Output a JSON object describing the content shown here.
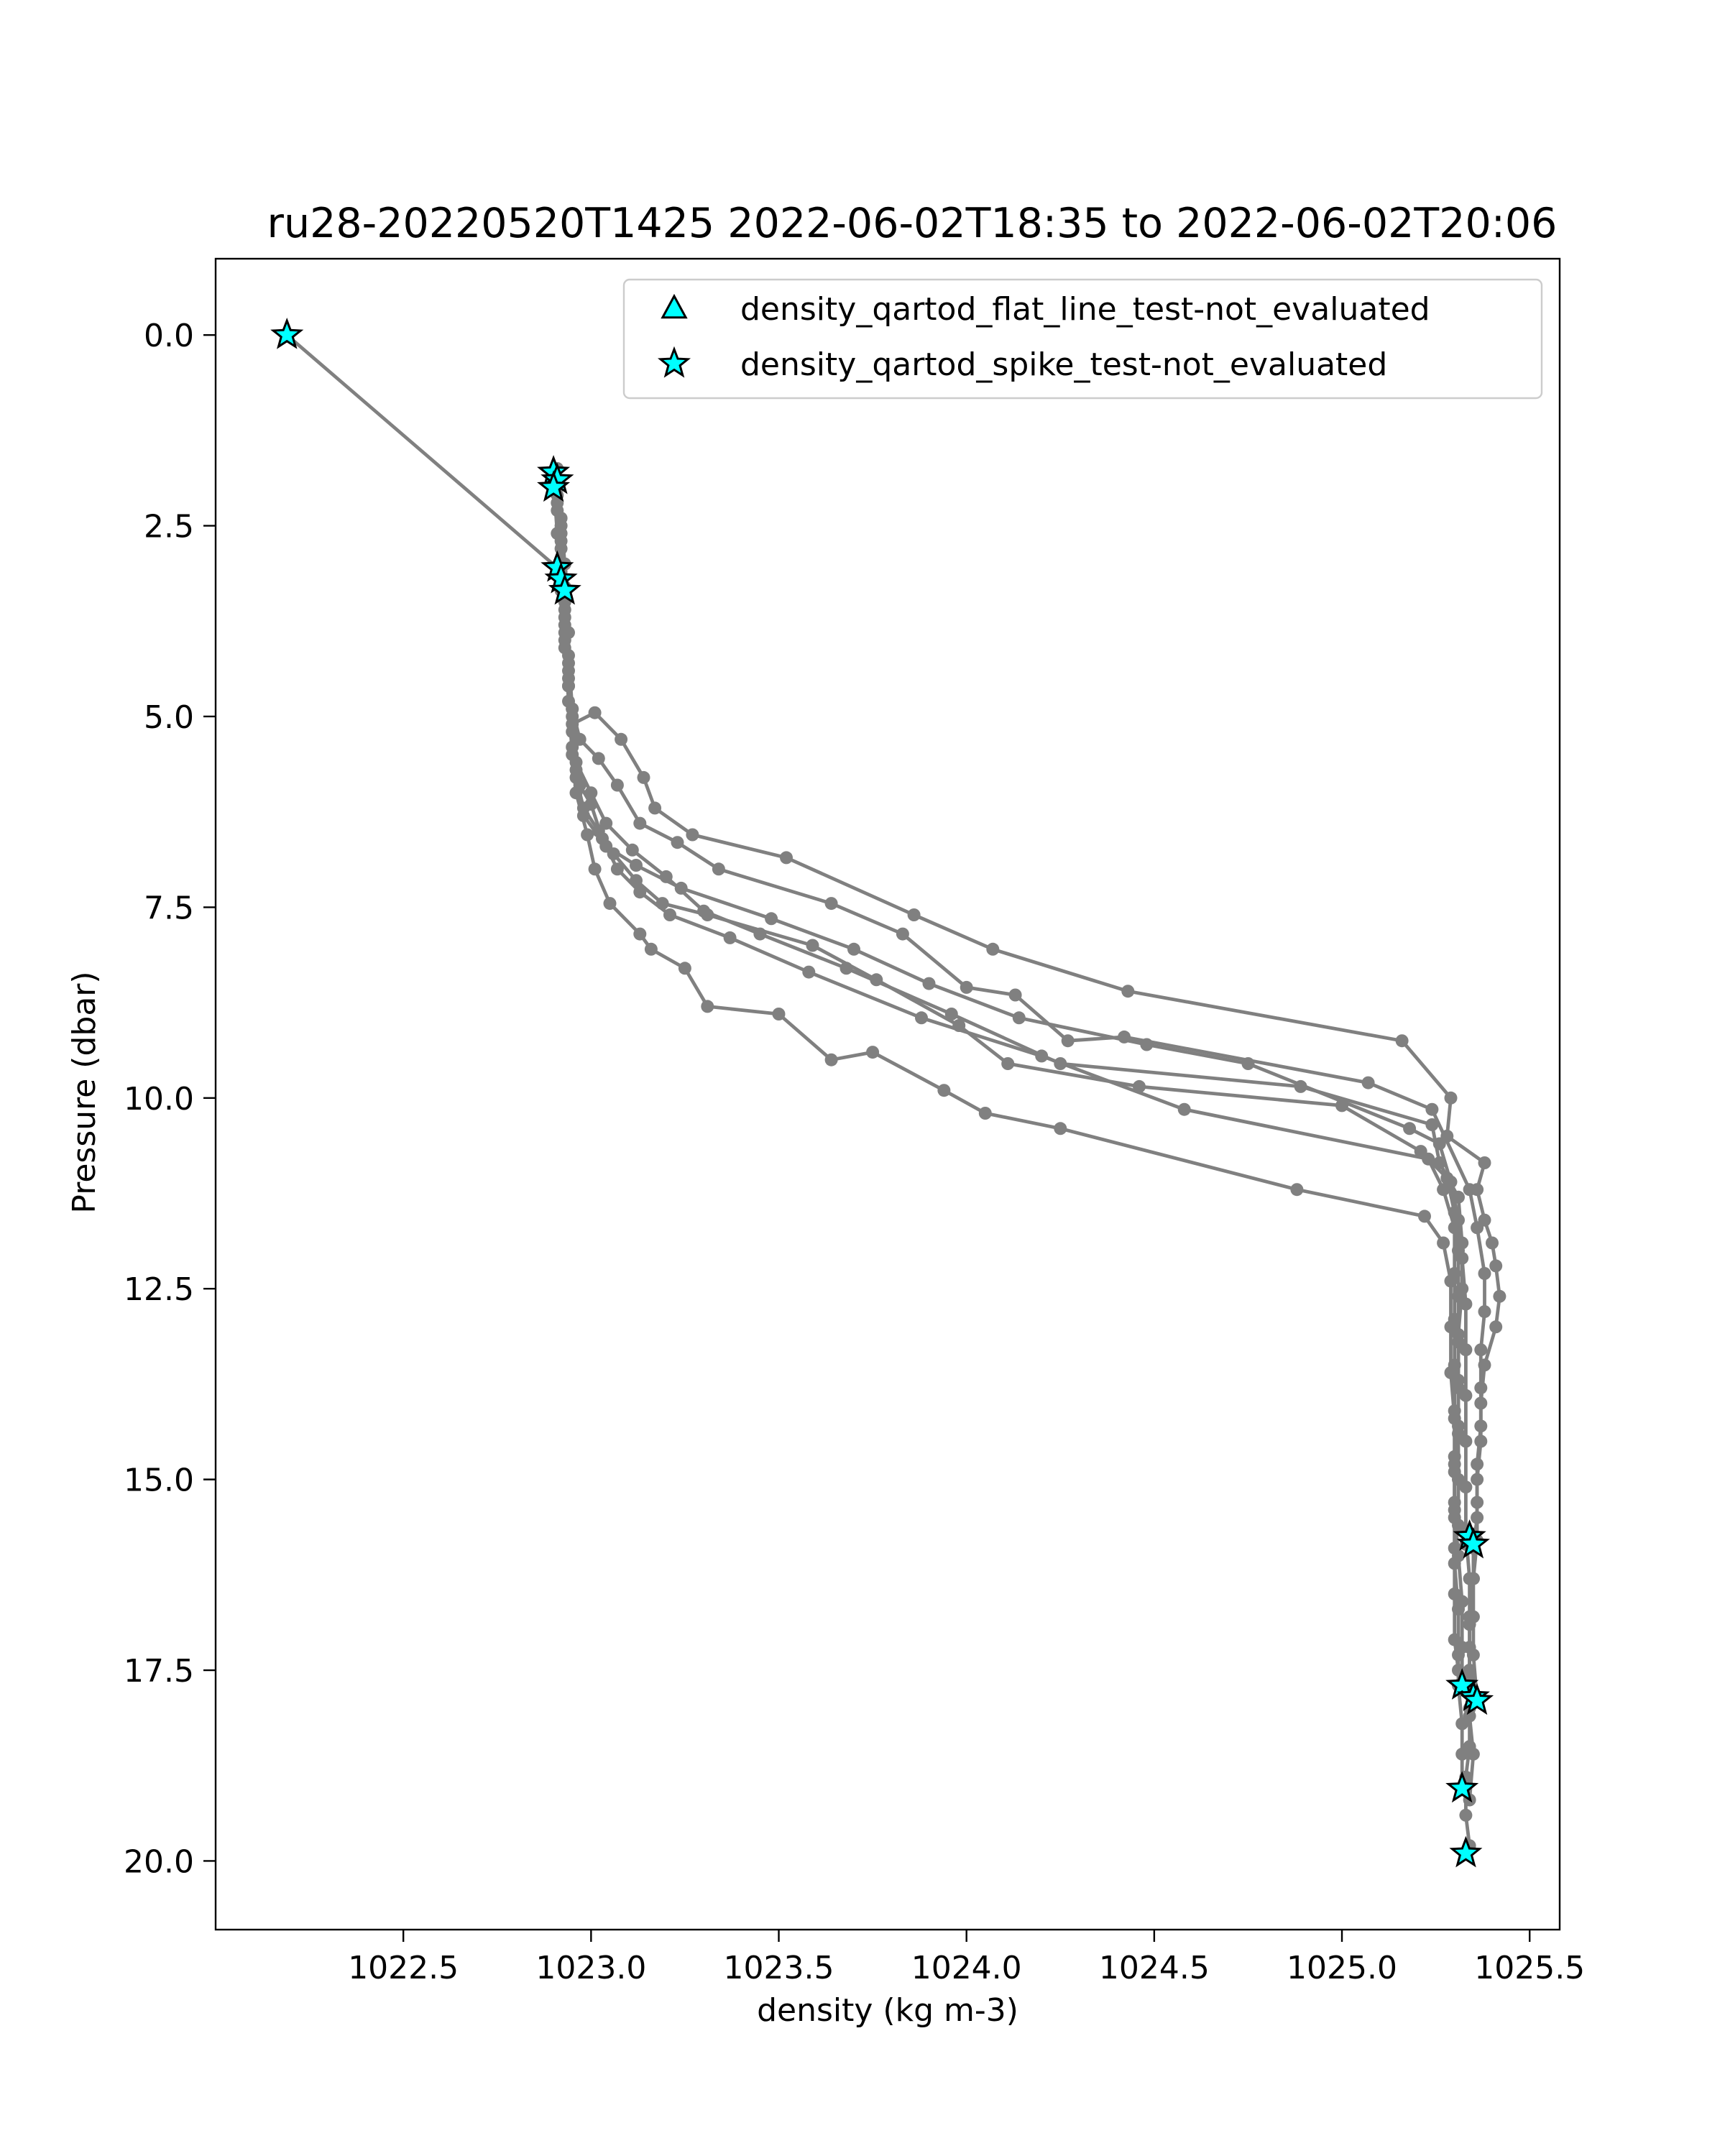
{
  "chart_data": {
    "type": "scatter",
    "title": "ru28-20220520T1425 2022-06-02T18:35 to 2022-06-02T20:06",
    "xlabel": "density (kg m-3)",
    "ylabel": "Pressure (dbar)",
    "xlim": [
      1022.0,
      1025.58
    ],
    "ylim": [
      20.9,
      -1.0
    ],
    "y_inverted": true,
    "x_ticks": [
      1022.5,
      1023.0,
      1023.5,
      1024.0,
      1024.5,
      1025.0,
      1025.5
    ],
    "x_tick_labels": [
      "1022.5",
      "1023.0",
      "1023.5",
      "1024.0",
      "1024.5",
      "1025.0",
      "1025.5"
    ],
    "y_ticks": [
      0.0,
      2.5,
      5.0,
      7.5,
      10.0,
      12.5,
      15.0,
      17.5,
      20.0
    ],
    "y_tick_labels": [
      "0.0",
      "2.5",
      "5.0",
      "7.5",
      "10.0",
      "12.5",
      "15.0",
      "17.5",
      "20.0"
    ],
    "grid": false,
    "legend_position": "top-right",
    "legend": [
      {
        "label": "density_qartod_flat_line_test-not_evaluated",
        "marker": "triangle",
        "color": "#00ffff"
      },
      {
        "label": "density_qartod_spike_test-not_evaluated",
        "marker": "star",
        "color": "#00ffff"
      }
    ],
    "line_color": "#808080",
    "series": [
      {
        "values": [
          [
            1022.19,
            0.0
          ],
          [
            1022.91,
            3.05
          ],
          [
            1022.92,
            3.3
          ],
          [
            1022.93,
            3.6
          ],
          [
            1022.93,
            4.1
          ],
          [
            1022.94,
            4.6
          ],
          [
            1022.95,
            5.1
          ],
          [
            1023.01,
            4.95
          ],
          [
            1023.08,
            5.3
          ],
          [
            1023.14,
            5.8
          ],
          [
            1023.17,
            6.2
          ],
          [
            1023.27,
            6.55
          ],
          [
            1023.52,
            6.85
          ],
          [
            1023.86,
            7.6
          ],
          [
            1024.07,
            8.05
          ],
          [
            1024.43,
            8.6
          ],
          [
            1025.16,
            9.25
          ],
          [
            1025.29,
            10.0
          ],
          [
            1025.28,
            10.5
          ],
          [
            1025.38,
            10.85
          ],
          [
            1025.36,
            11.2
          ],
          [
            1025.38,
            11.6
          ],
          [
            1025.4,
            11.9
          ],
          [
            1025.41,
            12.2
          ],
          [
            1025.42,
            12.6
          ],
          [
            1025.41,
            13.0
          ],
          [
            1025.38,
            13.5
          ],
          [
            1025.37,
            14.0
          ],
          [
            1025.37,
            14.5
          ],
          [
            1025.36,
            15.0
          ],
          [
            1025.36,
            15.5
          ],
          [
            1025.35,
            15.9
          ],
          [
            1025.35,
            16.3
          ],
          [
            1025.34,
            16.8
          ],
          [
            1025.34,
            17.2
          ],
          [
            1025.34,
            17.6
          ],
          [
            1025.34,
            18.0
          ],
          [
            1025.34,
            18.5
          ],
          [
            1025.33,
            18.9
          ],
          [
            1025.33,
            19.4
          ],
          [
            1025.34,
            19.8
          ],
          [
            1025.33,
            19.9
          ]
        ]
      },
      {
        "values": [
          [
            1022.9,
            1.8
          ],
          [
            1022.91,
            2.2
          ],
          [
            1022.92,
            2.6
          ],
          [
            1022.93,
            3.0
          ],
          [
            1022.93,
            3.4
          ],
          [
            1022.94,
            3.9
          ],
          [
            1022.94,
            4.4
          ],
          [
            1022.95,
            4.9
          ],
          [
            1022.97,
            5.3
          ],
          [
            1023.02,
            5.55
          ],
          [
            1023.07,
            5.9
          ],
          [
            1023.13,
            6.4
          ],
          [
            1023.23,
            6.65
          ],
          [
            1023.34,
            7.0
          ],
          [
            1023.64,
            7.45
          ],
          [
            1023.83,
            7.85
          ],
          [
            1024.0,
            8.55
          ],
          [
            1024.13,
            8.65
          ],
          [
            1024.27,
            9.25
          ],
          [
            1024.42,
            9.2
          ],
          [
            1025.07,
            9.8
          ],
          [
            1025.24,
            10.15
          ],
          [
            1025.34,
            11.2
          ],
          [
            1025.36,
            11.7
          ],
          [
            1025.38,
            12.3
          ],
          [
            1025.38,
            12.8
          ],
          [
            1025.37,
            13.3
          ],
          [
            1025.37,
            13.8
          ],
          [
            1025.37,
            14.3
          ],
          [
            1025.36,
            14.8
          ],
          [
            1025.36,
            15.3
          ],
          [
            1025.36,
            15.8
          ],
          [
            1025.35,
            16.3
          ],
          [
            1025.35,
            16.8
          ],
          [
            1025.35,
            17.3
          ],
          [
            1025.36,
            17.9
          ]
        ]
      },
      {
        "values": [
          [
            1022.91,
            1.75
          ],
          [
            1022.92,
            2.4
          ],
          [
            1022.93,
            3.0
          ],
          [
            1022.93,
            3.7
          ],
          [
            1022.94,
            4.3
          ],
          [
            1022.95,
            5.0
          ],
          [
            1022.96,
            5.6
          ],
          [
            1023.0,
            6.0
          ],
          [
            1023.04,
            6.4
          ],
          [
            1023.11,
            6.75
          ],
          [
            1023.2,
            7.1
          ],
          [
            1023.3,
            7.55
          ],
          [
            1023.45,
            7.85
          ],
          [
            1023.68,
            8.3
          ],
          [
            1023.96,
            8.9
          ],
          [
            1024.25,
            9.55
          ],
          [
            1024.89,
            9.85
          ],
          [
            1025.24,
            10.35
          ],
          [
            1025.26,
            10.85
          ],
          [
            1025.31,
            11.3
          ],
          [
            1025.32,
            11.9
          ],
          [
            1025.32,
            12.5
          ],
          [
            1025.31,
            13.1
          ],
          [
            1025.31,
            13.7
          ],
          [
            1025.31,
            14.3
          ],
          [
            1025.3,
            14.9
          ],
          [
            1025.3,
            15.5
          ],
          [
            1025.3,
            16.1
          ],
          [
            1025.31,
            16.7
          ],
          [
            1025.31,
            17.3
          ],
          [
            1025.31,
            17.7
          ],
          [
            1025.32,
            18.2
          ],
          [
            1025.32,
            18.6
          ],
          [
            1025.32,
            19.05
          ]
        ]
      },
      {
        "values": [
          [
            1022.9,
            1.85
          ],
          [
            1022.91,
            2.3
          ],
          [
            1022.92,
            2.8
          ],
          [
            1022.93,
            3.3
          ],
          [
            1022.93,
            3.9
          ],
          [
            1022.94,
            4.5
          ],
          [
            1022.95,
            5.2
          ],
          [
            1022.96,
            5.8
          ],
          [
            1022.98,
            6.2
          ],
          [
            1023.02,
            6.5
          ],
          [
            1023.06,
            6.8
          ],
          [
            1023.12,
            7.15
          ],
          [
            1023.19,
            7.45
          ],
          [
            1023.31,
            7.6
          ],
          [
            1023.59,
            8.0
          ],
          [
            1023.76,
            8.45
          ],
          [
            1023.98,
            9.05
          ],
          [
            1024.11,
            9.55
          ],
          [
            1024.46,
            9.85
          ],
          [
            1025.0,
            10.1
          ],
          [
            1025.21,
            10.7
          ],
          [
            1025.28,
            11.05
          ],
          [
            1025.3,
            11.5
          ],
          [
            1025.31,
            12.0
          ],
          [
            1025.31,
            12.6
          ],
          [
            1025.31,
            13.2
          ],
          [
            1025.31,
            13.8
          ],
          [
            1025.31,
            14.4
          ],
          [
            1025.31,
            15.0
          ],
          [
            1025.31,
            15.6
          ],
          [
            1025.33,
            15.85
          ]
        ]
      },
      {
        "values": [
          [
            1022.91,
            2.0
          ],
          [
            1022.92,
            2.5
          ],
          [
            1022.92,
            3.1
          ],
          [
            1022.93,
            3.8
          ],
          [
            1022.94,
            4.6
          ],
          [
            1022.95,
            5.4
          ],
          [
            1022.97,
            5.9
          ],
          [
            1023.0,
            6.15
          ],
          [
            1023.03,
            6.6
          ],
          [
            1023.07,
            7.0
          ],
          [
            1023.13,
            7.3
          ],
          [
            1023.21,
            7.6
          ],
          [
            1023.37,
            7.9
          ],
          [
            1023.58,
            8.35
          ],
          [
            1023.88,
            8.95
          ],
          [
            1024.2,
            9.45
          ],
          [
            1024.58,
            10.15
          ],
          [
            1025.23,
            10.8
          ],
          [
            1025.27,
            11.2
          ],
          [
            1025.3,
            11.7
          ],
          [
            1025.3,
            12.3
          ],
          [
            1025.3,
            12.9
          ],
          [
            1025.3,
            13.5
          ],
          [
            1025.3,
            14.1
          ],
          [
            1025.3,
            14.7
          ],
          [
            1025.3,
            15.3
          ],
          [
            1025.3,
            15.9
          ],
          [
            1025.3,
            16.5
          ],
          [
            1025.3,
            17.1
          ],
          [
            1025.31,
            17.5
          ]
        ]
      },
      {
        "values": [
          [
            1022.9,
            1.9
          ],
          [
            1022.91,
            2.6
          ],
          [
            1022.92,
            3.35
          ],
          [
            1022.93,
            4.0
          ],
          [
            1022.94,
            4.8
          ],
          [
            1022.95,
            5.5
          ],
          [
            1022.96,
            6.0
          ],
          [
            1022.99,
            6.55
          ],
          [
            1023.01,
            7.0
          ],
          [
            1023.05,
            7.45
          ],
          [
            1023.13,
            7.85
          ],
          [
            1023.16,
            8.05
          ],
          [
            1023.25,
            8.3
          ],
          [
            1023.31,
            8.8
          ],
          [
            1023.5,
            8.9
          ],
          [
            1023.64,
            9.5
          ],
          [
            1023.75,
            9.4
          ],
          [
            1023.94,
            9.9
          ],
          [
            1024.05,
            10.2
          ],
          [
            1024.25,
            10.4
          ],
          [
            1024.88,
            11.2
          ],
          [
            1025.22,
            11.55
          ],
          [
            1025.27,
            11.9
          ],
          [
            1025.29,
            12.4
          ],
          [
            1025.29,
            13.0
          ],
          [
            1025.29,
            13.6
          ],
          [
            1025.3,
            14.2
          ],
          [
            1025.3,
            14.8
          ],
          [
            1025.3,
            15.4
          ],
          [
            1025.31,
            16.0
          ],
          [
            1025.32,
            16.6
          ],
          [
            1025.32,
            17.2
          ],
          [
            1025.32,
            17.7
          ]
        ]
      },
      {
        "values": [
          [
            1022.91,
            2.1
          ],
          [
            1022.92,
            2.7
          ],
          [
            1022.93,
            3.5
          ],
          [
            1022.94,
            4.2
          ],
          [
            1022.95,
            4.9
          ],
          [
            1022.96,
            5.7
          ],
          [
            1022.98,
            6.3
          ],
          [
            1023.04,
            6.7
          ],
          [
            1023.12,
            6.95
          ],
          [
            1023.24,
            7.25
          ],
          [
            1023.48,
            7.65
          ],
          [
            1023.7,
            8.05
          ],
          [
            1023.9,
            8.5
          ],
          [
            1024.14,
            8.95
          ],
          [
            1024.48,
            9.3
          ],
          [
            1024.75,
            9.55
          ],
          [
            1025.18,
            10.4
          ],
          [
            1025.26,
            10.6
          ],
          [
            1025.29,
            11.1
          ],
          [
            1025.31,
            11.6
          ],
          [
            1025.32,
            12.1
          ],
          [
            1025.33,
            12.7
          ],
          [
            1025.33,
            13.3
          ],
          [
            1025.33,
            13.9
          ],
          [
            1025.33,
            14.5
          ],
          [
            1025.33,
            15.1
          ],
          [
            1025.33,
            15.7
          ],
          [
            1025.34,
            16.3
          ],
          [
            1025.34,
            16.9
          ],
          [
            1025.34,
            17.5
          ],
          [
            1025.34,
            18.1
          ],
          [
            1025.35,
            18.6
          ],
          [
            1025.34,
            19.2
          ]
        ]
      }
    ],
    "flat_line_flags": [],
    "spike_flags": [
      [
        1022.19,
        0.0
      ],
      [
        1022.9,
        1.8
      ],
      [
        1022.91,
        1.9
      ],
      [
        1022.9,
        2.0
      ],
      [
        1022.91,
        3.05
      ],
      [
        1022.92,
        3.2
      ],
      [
        1022.93,
        3.35
      ],
      [
        1025.34,
        15.75
      ],
      [
        1025.35,
        15.85
      ],
      [
        1025.32,
        17.7
      ],
      [
        1025.35,
        17.85
      ],
      [
        1025.36,
        17.9
      ],
      [
        1025.32,
        19.05
      ],
      [
        1025.33,
        19.9
      ]
    ]
  }
}
